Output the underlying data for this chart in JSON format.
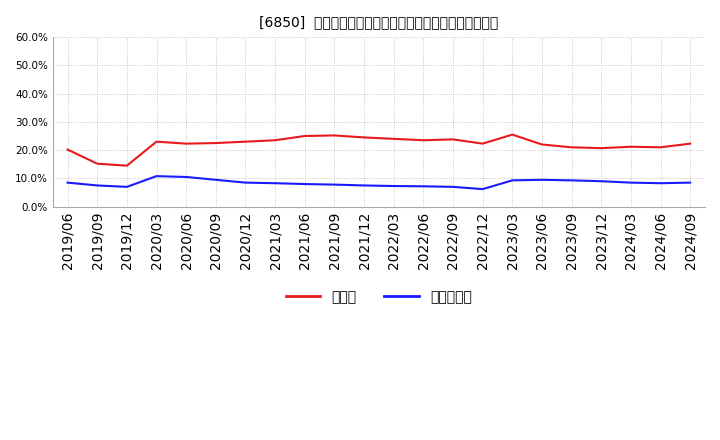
{
  "title": "[6850]  現須金、有利子負債の総資産に対する比率の推移",
  "x_labels": [
    "2019/06",
    "2019/09",
    "2019/12",
    "2020/03",
    "2020/06",
    "2020/09",
    "2020/12",
    "2021/03",
    "2021/06",
    "2021/09",
    "2021/12",
    "2022/03",
    "2022/06",
    "2022/09",
    "2022/12",
    "2023/03",
    "2023/06",
    "2023/09",
    "2023/12",
    "2024/03",
    "2024/06",
    "2024/09"
  ],
  "cash": [
    20.2,
    15.2,
    14.5,
    23.0,
    22.3,
    22.5,
    23.0,
    23.5,
    25.0,
    25.2,
    24.5,
    24.0,
    23.5,
    23.8,
    22.3,
    25.5,
    22.0,
    21.0,
    20.7,
    21.2,
    21.0,
    22.3
  ],
  "debt": [
    8.5,
    7.5,
    7.0,
    10.8,
    10.5,
    9.5,
    8.5,
    8.3,
    8.0,
    7.8,
    7.5,
    7.3,
    7.2,
    7.0,
    6.2,
    9.3,
    9.5,
    9.3,
    9.0,
    8.5,
    8.3,
    8.5
  ],
  "cash_color": "#e8191a",
  "debt_color": "#1a1aff",
  "background_color": "#ffffff",
  "plot_bg_color": "#ffffff",
  "grid_color": "#bbbbbb",
  "ylim": [
    0,
    60
  ],
  "yticks": [
    0,
    10,
    20,
    30,
    40,
    50,
    60
  ],
  "legend_cash": "現須金",
  "legend_debt": "有利子負債",
  "title_fontsize": 11,
  "tick_fontsize": 7.5,
  "legend_fontsize": 10
}
